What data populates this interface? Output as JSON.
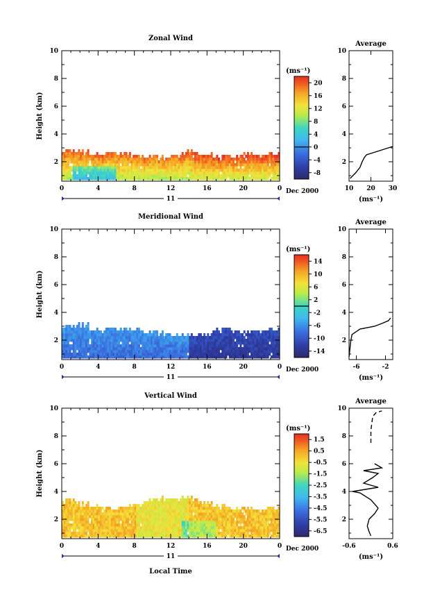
{
  "chart_data": [
    {
      "type": "heatmap",
      "title": "Zonal Wind",
      "ylabel": "Height (km)",
      "xlabel": "",
      "y_ticks": [
        "2",
        "4",
        "6",
        "8",
        "10"
      ],
      "x_ticks": [
        "0",
        "4",
        "8",
        "12",
        "16",
        "20",
        "0"
      ],
      "xlim": [
        0,
        24
      ],
      "ylim": [
        0.6,
        10
      ],
      "day_label": "11",
      "date_label": "Dec 2000",
      "colorbar": {
        "unit": "(ms⁻¹)",
        "ticks": [
          "-8",
          "-4",
          "0",
          "4",
          "8",
          "12",
          "16",
          "20"
        ],
        "range": [
          -10,
          22
        ],
        "zero_line": 0
      },
      "data_top_km": [
        2.7,
        2.6,
        2.4,
        2.6,
        2.5,
        2.4,
        2.3,
        2.2,
        2.4,
        2.6,
        2.5,
        2.2,
        2.3,
        2.5,
        2.4,
        2.4
      ],
      "average_profile": {
        "title": "Average",
        "xlabel": "(ms⁻¹)",
        "x_ticks": [
          "10",
          "20",
          "30"
        ],
        "xlim": [
          10,
          30
        ],
        "ylim": [
          0.6,
          10
        ],
        "y_ticks": [
          "2",
          "4",
          "6",
          "8",
          "10"
        ],
        "points": [
          [
            10.5,
            0.8
          ],
          [
            13,
            1.2
          ],
          [
            15,
            1.6
          ],
          [
            16,
            2.0
          ],
          [
            17,
            2.3
          ],
          [
            18,
            2.5
          ],
          [
            22,
            2.7
          ],
          [
            26,
            2.9
          ],
          [
            30,
            3.1
          ]
        ]
      }
    },
    {
      "type": "heatmap",
      "title": "Meridional Wind",
      "ylabel": "Height (km)",
      "xlabel": "",
      "y_ticks": [
        "2",
        "4",
        "6",
        "8",
        "10"
      ],
      "x_ticks": [
        "0",
        "4",
        "8",
        "12",
        "16",
        "20",
        "0"
      ],
      "xlim": [
        0,
        24
      ],
      "ylim": [
        0.6,
        10
      ],
      "day_label": "11",
      "date_label": "Dec 2000",
      "colorbar": {
        "unit": "(ms⁻¹)",
        "ticks": [
          "-14",
          "-10",
          "-6",
          "-2",
          "2",
          "6",
          "10",
          "14"
        ],
        "range": [
          -16,
          16
        ],
        "zero_line": 0
      },
      "data_top_km": [
        2.9,
        3.0,
        2.6,
        2.8,
        2.7,
        2.7,
        2.5,
        2.4,
        2.3,
        2.2,
        2.4,
        2.6,
        2.6,
        2.5,
        2.6,
        2.6
      ],
      "average_profile": {
        "title": "Average",
        "xlabel": "(ms⁻¹)",
        "x_ticks": [
          "-6",
          "-2"
        ],
        "xlim": [
          -7,
          -1
        ],
        "ylim": [
          0.6,
          10
        ],
        "y_ticks": [
          "2",
          "4",
          "6",
          "8",
          "10"
        ],
        "points": [
          [
            -7,
            0.8
          ],
          [
            -6.9,
            1.3
          ],
          [
            -6.8,
            1.8
          ],
          [
            -6.6,
            2.4
          ],
          [
            -5.5,
            2.8
          ],
          [
            -3.5,
            3.0
          ],
          [
            -2.5,
            3.2
          ],
          [
            -1.6,
            3.4
          ],
          [
            -1.3,
            3.6
          ]
        ]
      }
    },
    {
      "type": "heatmap",
      "title": "Vertical Wind",
      "ylabel": "Height (km)",
      "xlabel": "Local Time",
      "y_ticks": [
        "2",
        "4",
        "6",
        "8",
        "10"
      ],
      "x_ticks": [
        "0",
        "4",
        "8",
        "12",
        "16",
        "20",
        "0"
      ],
      "xlim": [
        0,
        24
      ],
      "ylim": [
        0.6,
        10
      ],
      "day_label": "11",
      "date_label": "Dec 2000",
      "colorbar": {
        "unit": "(ms⁻¹)",
        "ticks": [
          "-6.5",
          "-5.5",
          "-4.5",
          "-3.5",
          "-2.5",
          "-1.5",
          "-0.5",
          "0.5",
          "1.5"
        ],
        "range": [
          -7,
          2
        ],
        "zero_line": null
      },
      "data_top_km": [
        3.3,
        3.0,
        2.8,
        2.7,
        2.8,
        3.0,
        3.3,
        3.4,
        3.4,
        3.4,
        3.2,
        2.8,
        2.7,
        2.7,
        2.6,
        2.7
      ],
      "average_profile": {
        "title": "Average",
        "xlabel": "(ms⁻¹)",
        "x_ticks": [
          "-0.6",
          "0.6"
        ],
        "xlim": [
          -0.6,
          0.6
        ],
        "ylim": [
          0.6,
          10
        ],
        "y_ticks": [
          "2",
          "4",
          "6",
          "8",
          "10"
        ],
        "points": [
          [
            0.0,
            0.8
          ],
          [
            -0.05,
            1.1
          ],
          [
            -0.1,
            1.5
          ],
          [
            -0.05,
            2.0
          ],
          [
            0.1,
            2.4
          ],
          [
            0.2,
            2.8
          ],
          [
            0.0,
            3.4
          ],
          [
            -0.3,
            3.9
          ],
          [
            -0.5,
            4.0
          ],
          [
            0.2,
            4.3
          ],
          [
            -0.2,
            4.6
          ],
          [
            0.05,
            5.0
          ],
          [
            0.2,
            5.3
          ],
          [
            -0.2,
            5.5
          ],
          [
            0.3,
            5.7
          ],
          [
            0.1,
            6.0
          ]
        ],
        "dashed_points": [
          [
            0.0,
            7.5
          ],
          [
            0.0,
            8.4
          ],
          [
            0.05,
            9.4
          ],
          [
            0.15,
            9.7
          ],
          [
            0.3,
            9.8
          ]
        ]
      }
    }
  ]
}
